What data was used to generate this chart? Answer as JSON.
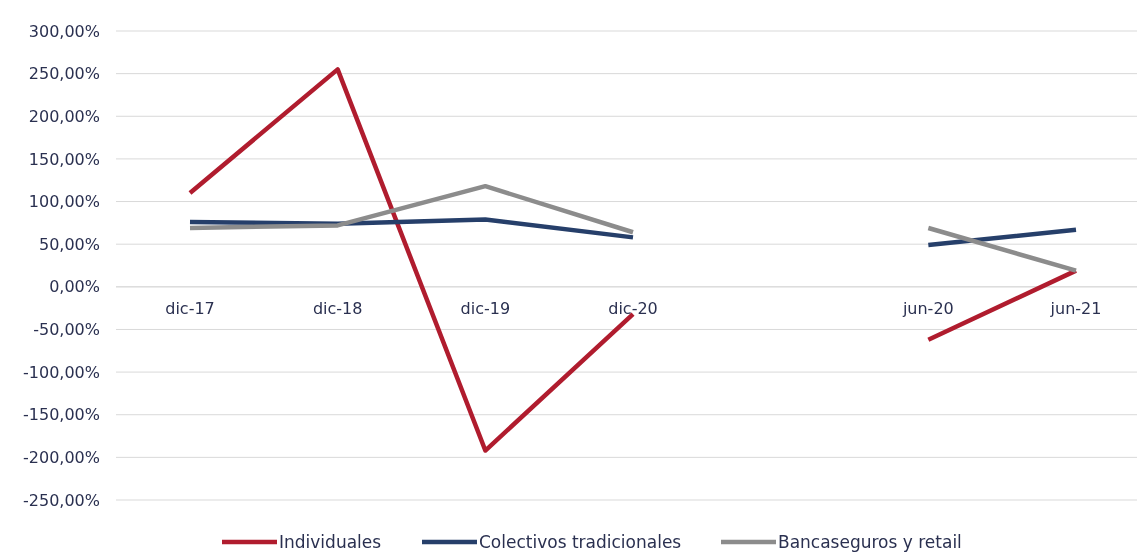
{
  "chart_data": {
    "type": "line",
    "categories": [
      "dic-17",
      "dic-18",
      "dic-19",
      "dic-20",
      null,
      "jun-20",
      "jun-21"
    ],
    "series": [
      {
        "name": "Individuales",
        "color": "#b01c2e",
        "values": [
          110,
          255,
          -192,
          -32,
          null,
          -62,
          19
        ]
      },
      {
        "name": "Colectivos tradicionales",
        "color": "#263f6a",
        "values": [
          76,
          74,
          79,
          58,
          null,
          49,
          67
        ]
      },
      {
        "name": "Bancaseguros y retail",
        "color": "#8c8c8c",
        "values": [
          69,
          72,
          118,
          64,
          null,
          69,
          19
        ]
      }
    ],
    "ylim": [
      -250,
      300
    ],
    "yticks": [
      {
        "value": -250,
        "label": "-250,00%"
      },
      {
        "value": -200,
        "label": "-200,00%"
      },
      {
        "value": -150,
        "label": "-150,00%"
      },
      {
        "value": -100,
        "label": "-100,00%"
      },
      {
        "value": -50,
        "label": "-50,00%"
      },
      {
        "value": 0,
        "label": "0,00%"
      },
      {
        "value": 50,
        "label": "50,00%"
      },
      {
        "value": 100,
        "label": "100,00%"
      },
      {
        "value": 150,
        "label": "150,00%"
      },
      {
        "value": 200,
        "label": "200,00%"
      },
      {
        "value": 250,
        "label": "250,00%"
      },
      {
        "value": 300,
        "label": "300,00%"
      }
    ],
    "grid": "y",
    "legend": "bottom",
    "line_style": "solid"
  }
}
